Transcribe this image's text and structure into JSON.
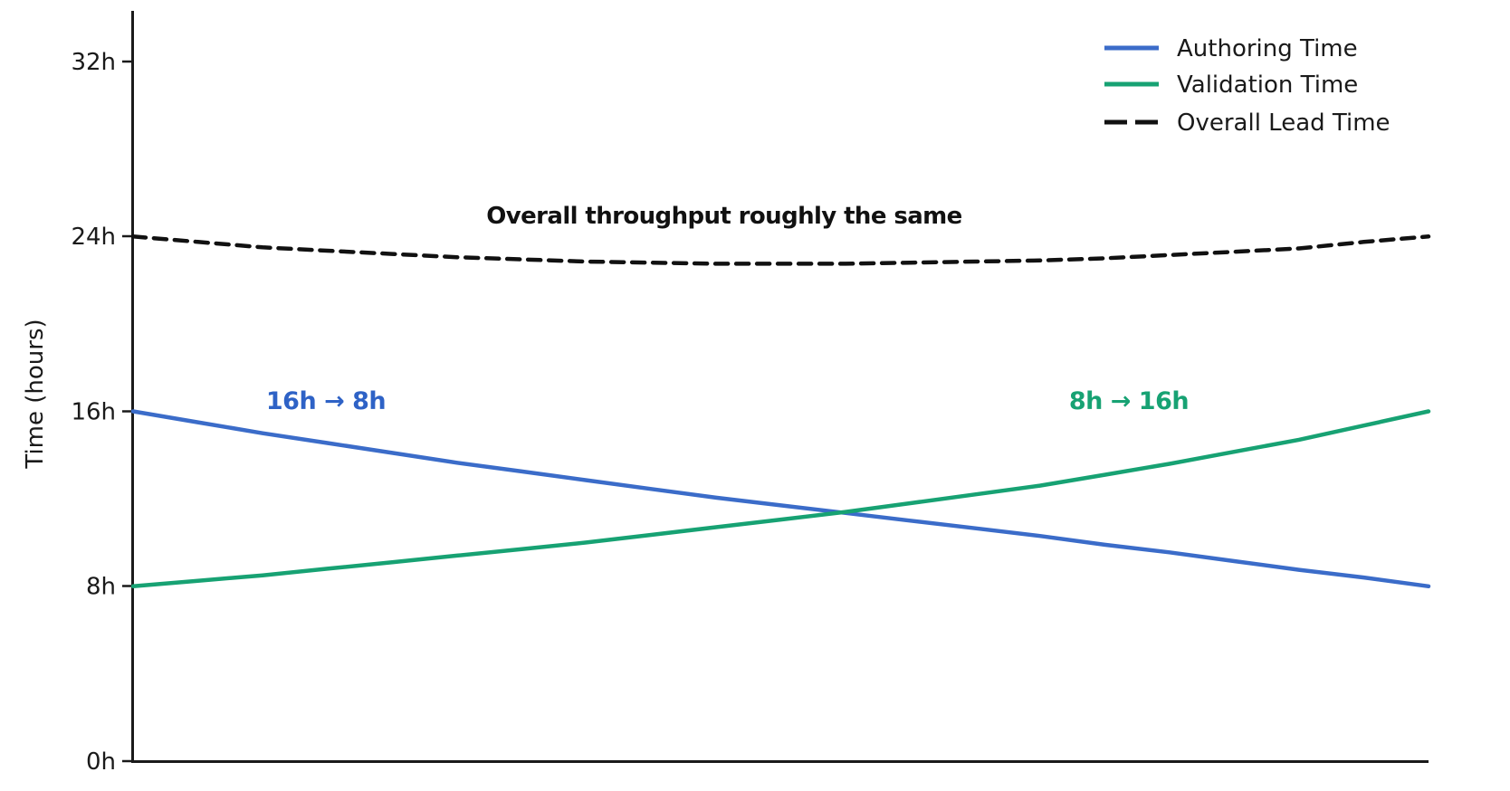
{
  "chart_data": {
    "type": "line",
    "title": "",
    "xlabel": "",
    "ylabel": "Time (hours)",
    "ylim": [
      0,
      32
    ],
    "grid": false,
    "background": "#ffffff",
    "axis_color": "#1a1a1a",
    "yticks": [
      {
        "value": 0,
        "label": "0h"
      },
      {
        "value": 8,
        "label": "8h"
      },
      {
        "value": 16,
        "label": "16h"
      },
      {
        "value": 24,
        "label": "24h"
      },
      {
        "value": 32,
        "label": "32h"
      }
    ],
    "x_progress": [
      0,
      0.05,
      0.1,
      0.15,
      0.2,
      0.25,
      0.3,
      0.35,
      0.4,
      0.45,
      0.5,
      0.55,
      0.6,
      0.65,
      0.7,
      0.75,
      0.8,
      0.85,
      0.9,
      0.95,
      1
    ],
    "series": [
      {
        "id": "authoring",
        "name": "Authoring Time",
        "color": "#3b6cc9",
        "style": "solid",
        "start_hours": 16,
        "end_hours": 8,
        "values": [
          16,
          15.5,
          15,
          14.55,
          14.1,
          13.65,
          13.25,
          12.85,
          12.45,
          12.05,
          11.7,
          11.35,
          11,
          10.65,
          10.3,
          9.9,
          9.55,
          9.15,
          8.75,
          8.4,
          8
        ]
      },
      {
        "id": "validation",
        "name": "Validation Time",
        "color": "#17a273",
        "style": "solid",
        "start_hours": 8,
        "end_hours": 16,
        "values": [
          8,
          8.25,
          8.5,
          8.8,
          9.1,
          9.4,
          9.7,
          10,
          10.35,
          10.7,
          11.05,
          11.4,
          11.8,
          12.2,
          12.6,
          13.1,
          13.6,
          14.15,
          14.7,
          15.35,
          16
        ]
      },
      {
        "id": "lead",
        "name": "Overall Lead Time",
        "color": "#111111",
        "style": "dashed",
        "start_hours": 24,
        "end_hours": 24,
        "values": [
          24,
          23.75,
          23.5,
          23.35,
          23.2,
          23.05,
          22.95,
          22.85,
          22.8,
          22.75,
          22.75,
          22.75,
          22.8,
          22.85,
          22.9,
          23,
          23.15,
          23.3,
          23.45,
          23.75,
          24
        ]
      }
    ],
    "legend": {
      "position": "upper right",
      "entries": [
        "Authoring Time",
        "Validation Time",
        "Overall Lead Time"
      ]
    },
    "annotations": [
      {
        "id": "overall-note",
        "text": "Overall throughput roughly the same",
        "color": "#111111"
      },
      {
        "id": "authoring-change",
        "text": "16h → 8h",
        "color": "#2e62c6"
      },
      {
        "id": "validation-change",
        "text": "8h → 16h",
        "color": "#17a273"
      }
    ]
  }
}
